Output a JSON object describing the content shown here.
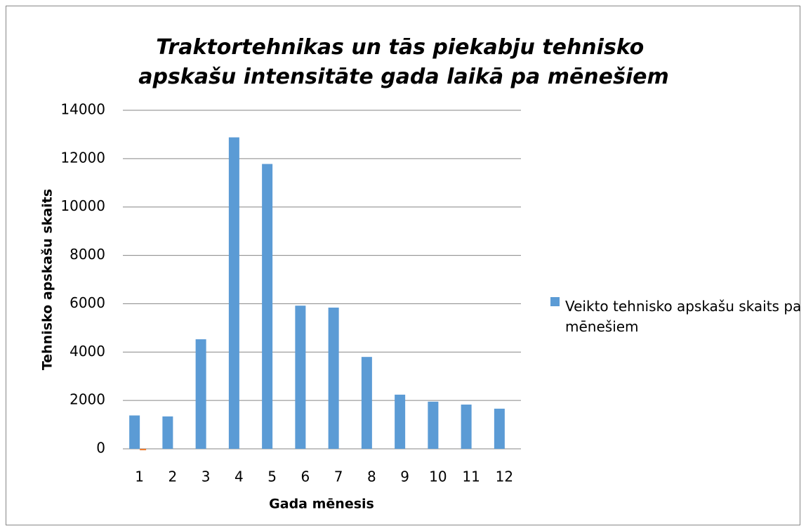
{
  "chart_data": {
    "type": "bar",
    "title": "Traktortehnikas un tās piekabju tehnisko apskašu intensitāte gada laikā pa mēnešiem",
    "x_label": "Gada mēnesis",
    "y_label": "Tehnisko apskašu skaits",
    "categories": [
      "1",
      "2",
      "3",
      "4",
      "5",
      "6",
      "7",
      "8",
      "9",
      "10",
      "11",
      "12"
    ],
    "series": [
      {
        "name": "Veikto tehnisko apskašu skaits pa mēnešiem",
        "color": "#5b9bd5",
        "values": [
          1380,
          1340,
          4530,
          12880,
          11780,
          5920,
          5840,
          3800,
          2240,
          1950,
          1830,
          1660
        ]
      },
      {
        "color": "#ed7d31",
        "values": [
          -60,
          null,
          null,
          null,
          null,
          null,
          null,
          null,
          null,
          null,
          null,
          null
        ]
      }
    ],
    "ylim": [
      0,
      14000
    ],
    "yticks": [
      0,
      2000,
      4000,
      6000,
      8000,
      10000,
      12000,
      14000
    ],
    "grid": true,
    "legend": "right"
  }
}
